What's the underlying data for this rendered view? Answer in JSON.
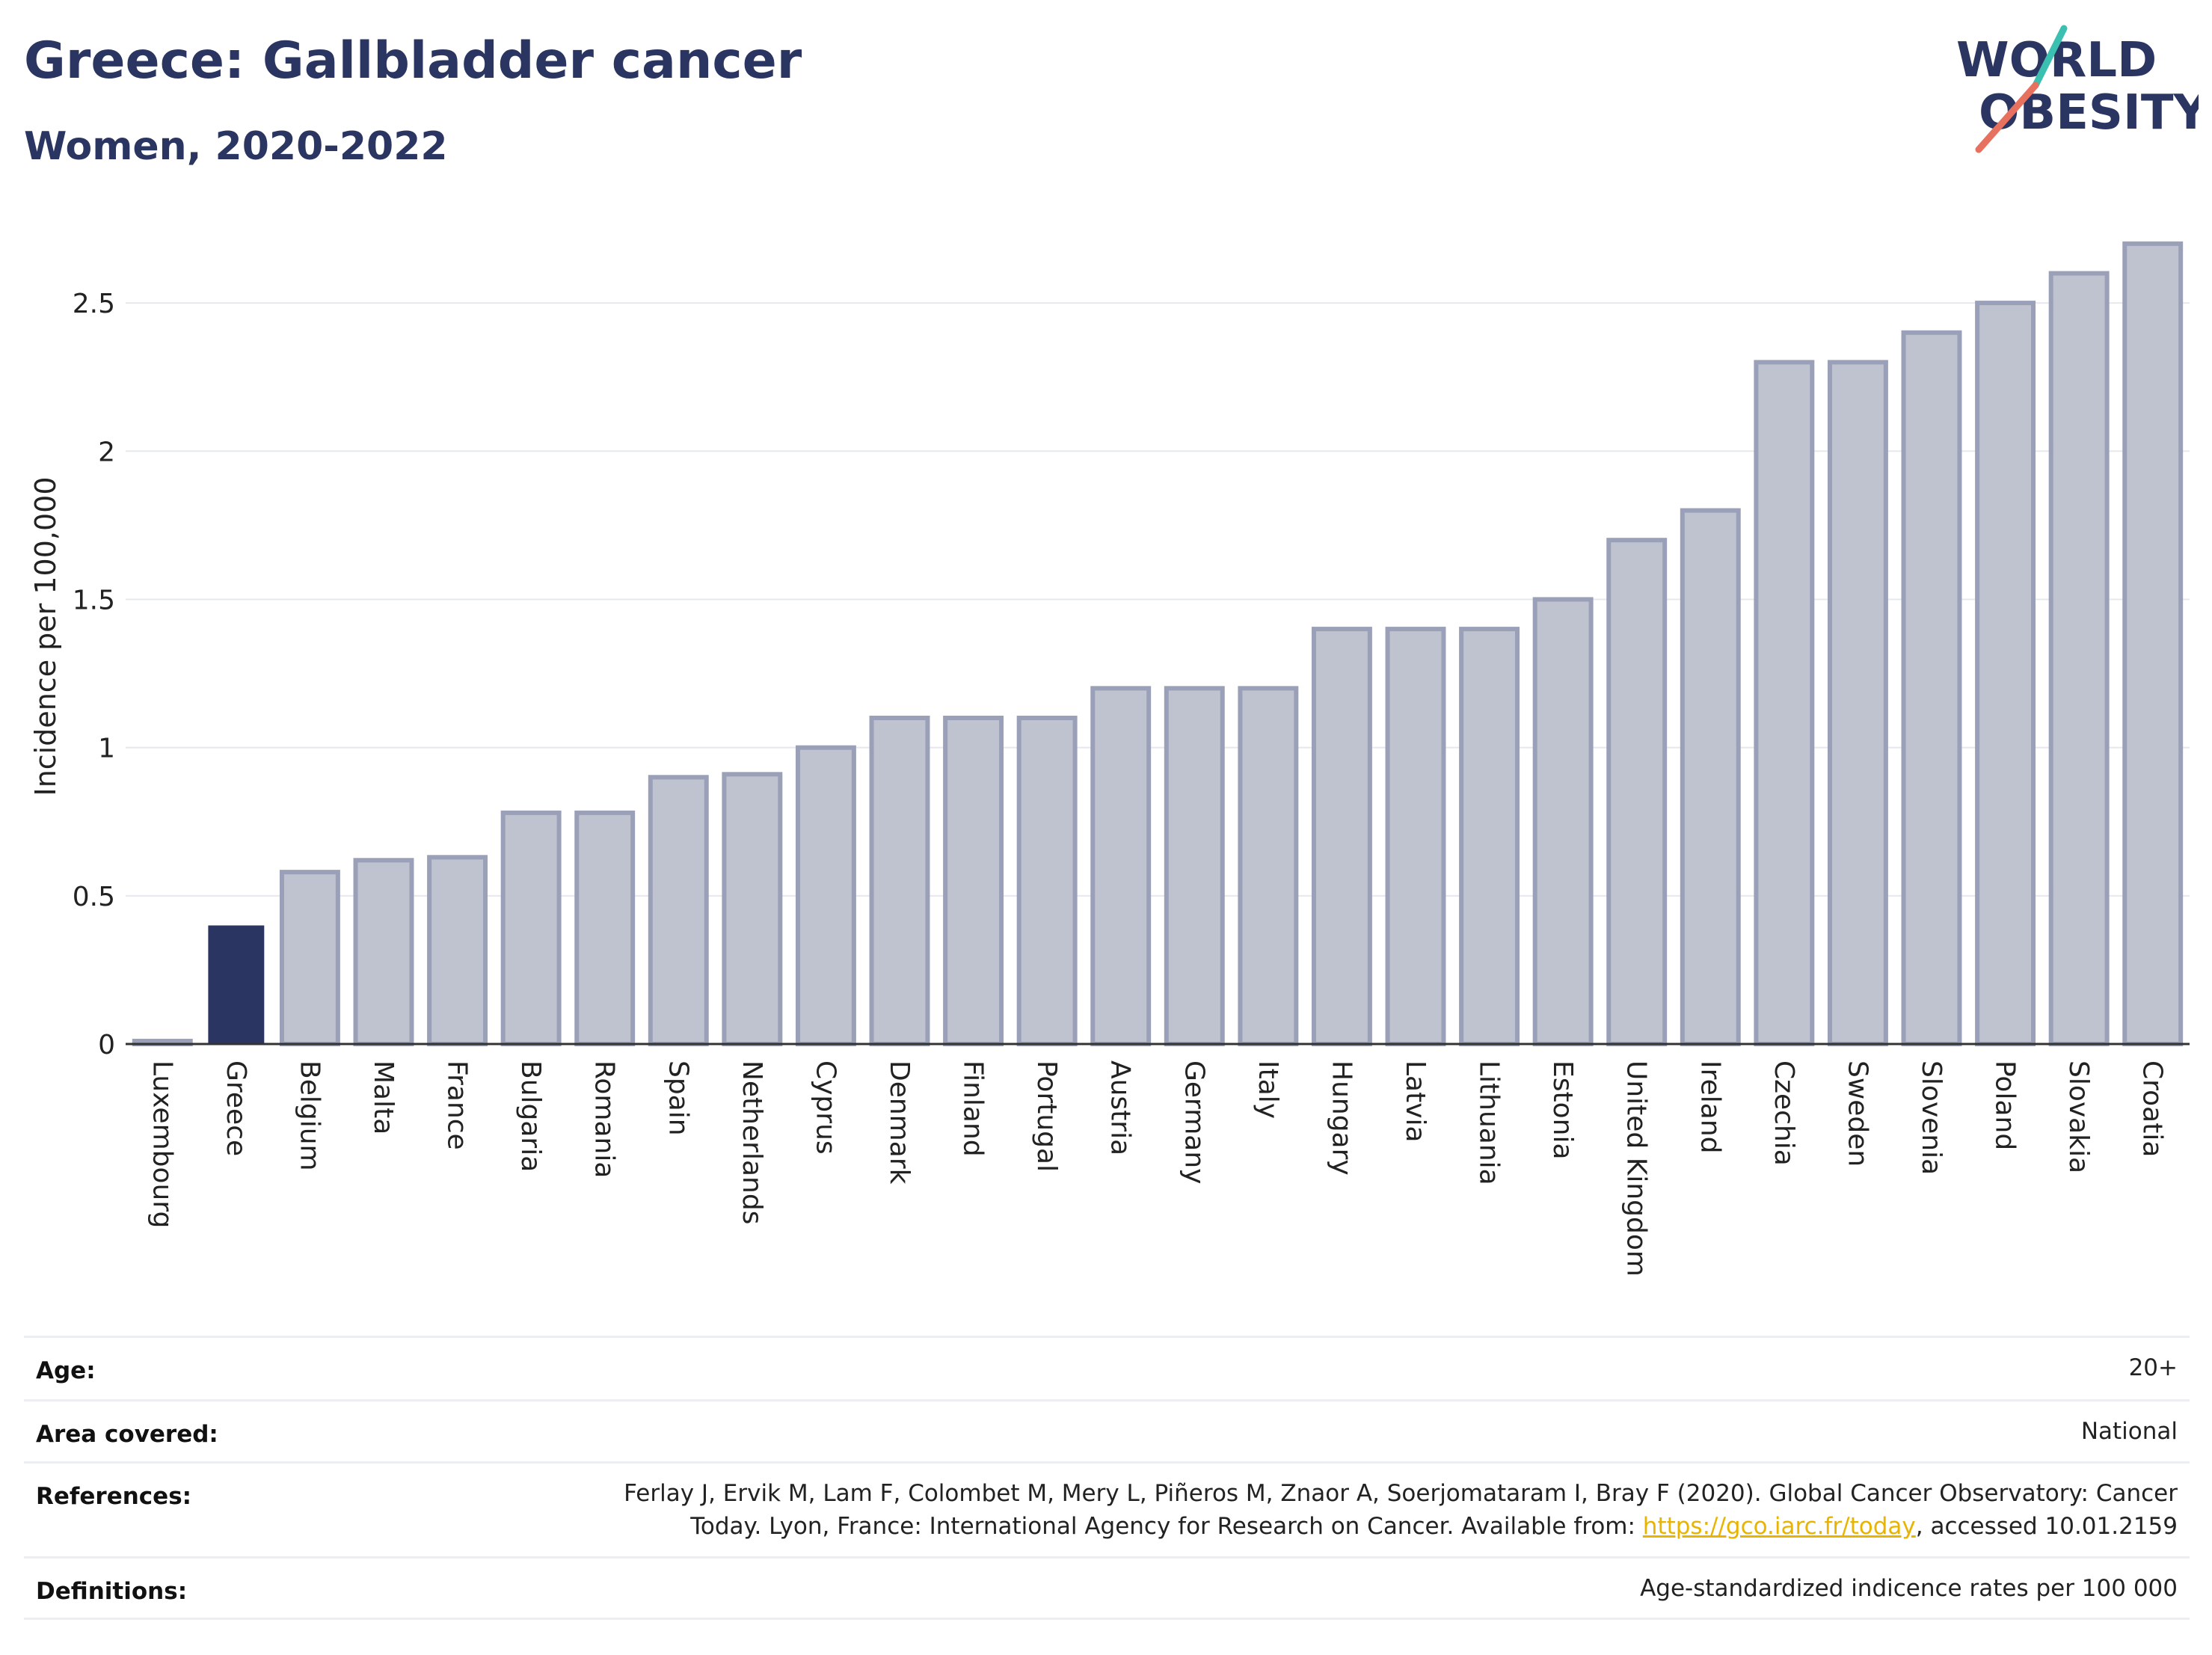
{
  "header": {
    "title": "Greece: Gallbladder cancer",
    "subtitle": "Women, 2020-2022",
    "logo_line1": "WORLD",
    "logo_line2": "OBESITY"
  },
  "colors": {
    "title": "#2b3561",
    "highlight_bar": "#2b3561",
    "other_bar_fill": "#bfc2cf",
    "other_bar_stroke": "#9aa0b8",
    "logo_teal": "#3bbfb0",
    "logo_coral": "#e8705f",
    "link": "#e8b400"
  },
  "chart_data": {
    "type": "bar",
    "ylabel": "Incidence per 100,000",
    "ylim": [
      0,
      2.75
    ],
    "yticks": [
      0,
      0.5,
      1,
      1.5,
      2,
      2.5
    ],
    "ytick_labels": [
      "0",
      "0.5",
      "1",
      "1.5",
      "2",
      "2.5"
    ],
    "grid": true,
    "highlight": "Greece",
    "categories": [
      "Luxembourg",
      "Greece",
      "Belgium",
      "Malta",
      "France",
      "Bulgaria",
      "Romania",
      "Spain",
      "Netherlands",
      "Cyprus",
      "Denmark",
      "Finland",
      "Portugal",
      "Austria",
      "Germany",
      "Italy",
      "Hungary",
      "Latvia",
      "Lithuania",
      "Estonia",
      "United Kingdom",
      "Ireland",
      "Czechia",
      "Sweden",
      "Slovenia",
      "Poland",
      "Slovakia",
      "Croatia"
    ],
    "values": [
      0.01,
      0.4,
      0.58,
      0.62,
      0.63,
      0.78,
      0.78,
      0.9,
      0.91,
      1.0,
      1.1,
      1.1,
      1.1,
      1.2,
      1.2,
      1.2,
      1.4,
      1.4,
      1.4,
      1.5,
      1.7,
      1.8,
      2.3,
      2.3,
      2.4,
      2.5,
      2.6,
      2.7
    ]
  },
  "meta": {
    "age_label": "Age:",
    "age_value": "20+",
    "area_label": "Area covered:",
    "area_value": "National",
    "references_label": "References:",
    "references_line1": "Ferlay J, Ervik M, Lam F, Colombet M, Mery L, Piñeros M, Znaor A, Soerjomataram I, Bray F (2020). Global Cancer Observatory: Cancer",
    "references_line2_pre": "Today. Lyon, France: International Agency for Research on Cancer. Available from: ",
    "references_link": "https://gco.iarc.fr/today",
    "references_line2_post": ", accessed 10.01.2159",
    "definitions_label": "Definitions:",
    "definitions_value": "Age-standardized indicence rates per 100 000"
  }
}
